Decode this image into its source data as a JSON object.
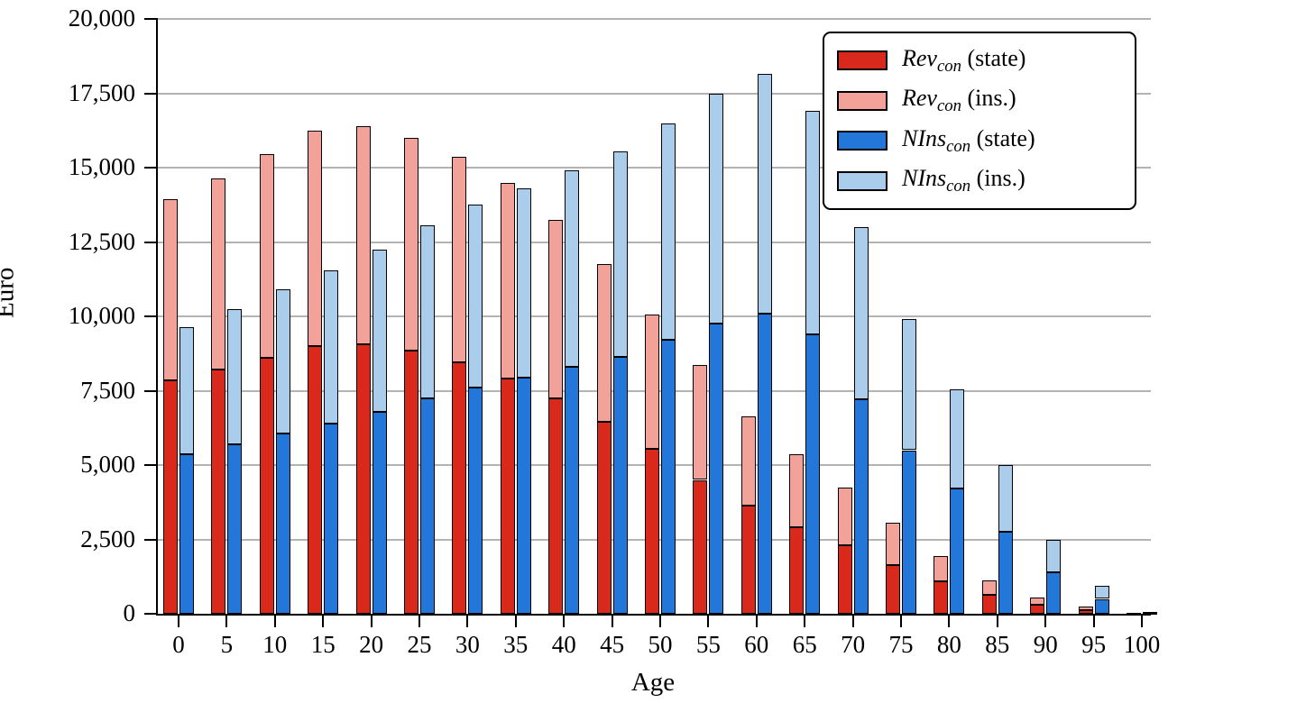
{
  "chart_data": {
    "type": "bar",
    "variant": "grouped-stacked",
    "title": "",
    "xlabel": "Age",
    "ylabel": "Euro",
    "ylim": [
      0,
      20000
    ],
    "grid": "horizontal",
    "legend_position": "top-right",
    "y_ticks": [
      "0",
      "2,500",
      "5,000",
      "7,500",
      "10,000",
      "12,500",
      "15,000",
      "17,500",
      "20,000"
    ],
    "y_tick_values": [
      0,
      2500,
      5000,
      7500,
      10000,
      12500,
      15000,
      17500,
      20000
    ],
    "categories": [
      "0",
      "5",
      "10",
      "15",
      "20",
      "25",
      "30",
      "35",
      "40",
      "45",
      "50",
      "55",
      "60",
      "65",
      "70",
      "75",
      "80",
      "85",
      "90",
      "95",
      "100"
    ],
    "stacks": [
      {
        "name": "Rev",
        "segments": [
          {
            "key": "rev-state",
            "label_math": "Rev",
            "label_sub": "con",
            "label_rest": " (state)",
            "color": "#d9291c",
            "values": [
              7850,
              8200,
              8600,
              9000,
              9050,
              8850,
              8450,
              7900,
              7250,
              6450,
              5550,
              4500,
              3650,
              2900,
              2300,
              1650,
              1100,
              625,
              300,
              130,
              20
            ]
          },
          {
            "key": "rev-ins",
            "label_math": "Rev",
            "label_sub": "con",
            "label_rest": " (ins.)",
            "color": "#f3a29a",
            "values": [
              6100,
              6450,
              6850,
              7250,
              7350,
              7150,
              6900,
              6600,
              6000,
              5300,
              4500,
              3850,
              3000,
              2450,
              1950,
              1400,
              850,
              500,
              250,
              120,
              20
            ]
          }
        ]
      },
      {
        "name": "NIns",
        "segments": [
          {
            "key": "nins-state",
            "label_math": "NIns",
            "label_sub": "con",
            "label_rest": " (state)",
            "color": "#2377d8",
            "values": [
              5350,
              5700,
              6050,
              6400,
              6800,
              7250,
              7600,
              7950,
              8300,
              8650,
              9200,
              9750,
              10100,
              9400,
              7200,
              5500,
              4200,
              2750,
              1400,
              500,
              30
            ]
          },
          {
            "key": "nins-ins",
            "label_math": "NIns",
            "label_sub": "con",
            "label_rest": " (ins.)",
            "color": "#aacdec",
            "values": [
              4300,
              4550,
              4850,
              5150,
              5450,
              5800,
              6150,
              6350,
              6600,
              6900,
              7300,
              7750,
              8050,
              7500,
              5800,
              4400,
              3350,
              2250,
              1100,
              450,
              30
            ]
          }
        ]
      }
    ],
    "colors": {
      "gridline": "#b3b3b3",
      "axis": "#000000",
      "bar_outline": "#000000"
    }
  }
}
